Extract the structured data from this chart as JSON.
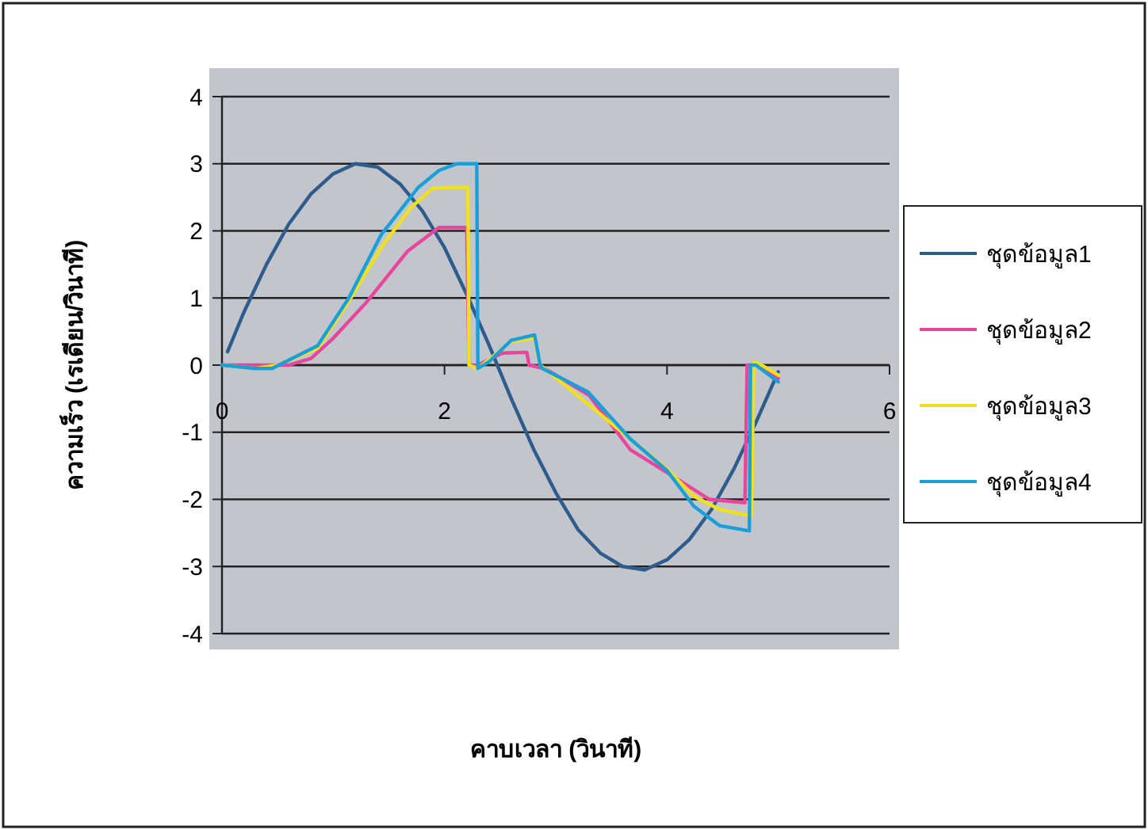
{
  "chart_data": {
    "type": "line",
    "xlabel": "คาบเวลา (วินาที)",
    "ylabel": "ความเร็ว (เรเดียน/วินาที)",
    "xlim": [
      0,
      6
    ],
    "xticks": [
      0,
      2,
      4,
      6
    ],
    "ylim": [
      -4,
      4
    ],
    "yticks": [
      -4,
      -3,
      -2,
      -1,
      0,
      1,
      2,
      3,
      4
    ],
    "grid": "y",
    "legend": "right",
    "marker": "none",
    "line_style": "solid",
    "series": [
      {
        "name": "ชุดข้อมูล1",
        "color": "#2e5c8c",
        "x": [
          0.05,
          0.2,
          0.4,
          0.6,
          0.8,
          1.0,
          1.2,
          1.4,
          1.6,
          1.8,
          2.0,
          2.2,
          2.4,
          2.6,
          2.8,
          3.0,
          3.2,
          3.4,
          3.6,
          3.8,
          4.0,
          4.2,
          4.4,
          4.6,
          4.8,
          5.0
        ],
        "values": [
          0.2,
          0.8,
          1.5,
          2.1,
          2.55,
          2.85,
          3.0,
          2.95,
          2.7,
          2.3,
          1.75,
          1.05,
          0.3,
          -0.5,
          -1.25,
          -1.9,
          -2.45,
          -2.8,
          -3.0,
          -3.05,
          -2.9,
          -2.6,
          -2.15,
          -1.55,
          -0.85,
          -0.1
        ]
      },
      {
        "name": "ชุดข้อมูล2",
        "color": "#e8459c",
        "x": [
          0,
          0.6,
          0.8,
          1.0,
          1.29,
          1.67,
          1.95,
          2.2,
          2.22,
          2.3,
          2.52,
          2.74,
          2.76,
          2.9,
          3.3,
          3.67,
          4.0,
          4.38,
          4.7,
          4.72,
          4.8,
          5.0
        ],
        "values": [
          0,
          0,
          0.1,
          0.4,
          0.92,
          1.7,
          2.05,
          2.05,
          0,
          0,
          0.18,
          0.19,
          0,
          -0.05,
          -0.45,
          -1.26,
          -1.6,
          -2.0,
          -2.05,
          0,
          0,
          -0.2
        ]
      },
      {
        "name": "ชุดข้อมูล3",
        "color": "#f0e01e",
        "x": [
          0,
          0.3,
          0.5,
          0.86,
          1.14,
          1.43,
          1.7,
          1.9,
          2.21,
          2.22,
          2.3,
          2.6,
          2.81,
          2.86,
          2.9,
          4.0,
          4.24,
          4.47,
          4.76,
          4.78,
          4.85,
          5.0
        ],
        "values": [
          0,
          -0.05,
          0,
          0.25,
          0.95,
          1.75,
          2.35,
          2.64,
          2.65,
          0,
          -0.05,
          0.35,
          0.4,
          0,
          -0.05,
          -1.55,
          -1.95,
          -2.15,
          -2.25,
          0.05,
          0,
          -0.15
        ]
      },
      {
        "name": "ชุดข้อมูล4",
        "color": "#1aa0d8",
        "x": [
          0,
          0.3,
          0.45,
          0.86,
          1.14,
          1.43,
          1.76,
          1.95,
          2.11,
          2.29,
          2.3,
          2.4,
          2.6,
          2.81,
          2.86,
          2.88,
          3.29,
          3.67,
          4.0,
          4.24,
          4.47,
          4.74,
          4.75,
          4.8,
          5.0
        ],
        "values": [
          0,
          -0.05,
          -0.05,
          0.29,
          1.0,
          1.94,
          2.64,
          2.9,
          3.0,
          3.0,
          -0.05,
          0.05,
          0.37,
          0.45,
          0,
          -0.05,
          -0.4,
          -1.1,
          -1.57,
          -2.1,
          -2.39,
          -2.47,
          0,
          0,
          -0.25
        ]
      }
    ]
  }
}
